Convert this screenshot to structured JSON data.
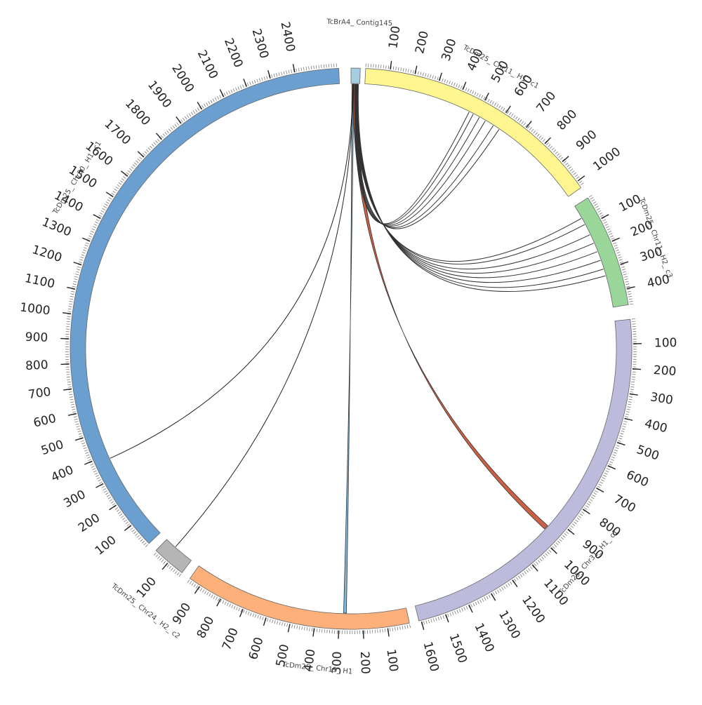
{
  "contigs": [
    {
      "id": "c145",
      "name": "TcBrA4_ Contig145",
      "color": "#a6cee3",
      "start_deg": 0,
      "end_deg": 1.9,
      "ticks": [],
      "label_deg": 1.5,
      "label_r": 465
    },
    {
      "id": "chr11h1",
      "name": "TcDm25_ Chr11_ H1_ c1",
      "color": "#fff68f",
      "start_deg": 3.0,
      "end_deg": 55.0,
      "ticks": [
        {
          "deg": 8.0,
          "label": "100"
        },
        {
          "deg": 13.1,
          "label": "200"
        },
        {
          "deg": 18.2,
          "label": "300"
        },
        {
          "deg": 23.3,
          "label": "400"
        },
        {
          "deg": 28.3,
          "label": "500"
        },
        {
          "deg": 33.3,
          "label": "600"
        },
        {
          "deg": 38.4,
          "label": "700"
        },
        {
          "deg": 43.4,
          "label": "800"
        },
        {
          "deg": 48.5,
          "label": "900"
        },
        {
          "deg": 53.5,
          "label": "1000"
        }
      ],
      "label_deg": 28,
      "label_r": 455
    },
    {
      "id": "chr11h2",
      "name": "TcDm25_ Chr11_ H2_ c3",
      "color": "#9ad69a",
      "start_deg": 57.5,
      "end_deg": 81.0,
      "ticks": [
        {
          "deg": 62.5,
          "label": "100"
        },
        {
          "deg": 67.6,
          "label": "200"
        },
        {
          "deg": 72.6,
          "label": "300"
        },
        {
          "deg": 77.7,
          "label": "400"
        }
      ],
      "label_deg": 70,
      "label_r": 462
    },
    {
      "id": "chr31",
      "name": "TcDm25_ Chr31_ H1_ c1",
      "color": "#bcbbdc",
      "start_deg": 84.0,
      "end_deg": 166.0,
      "ticks": [
        {
          "deg": 89.0,
          "label": "100"
        },
        {
          "deg": 94.1,
          "label": "200"
        },
        {
          "deg": 99.2,
          "label": "300"
        },
        {
          "deg": 104.3,
          "label": "400"
        },
        {
          "deg": 109.4,
          "label": "500"
        },
        {
          "deg": 114.5,
          "label": "600"
        },
        {
          "deg": 119.6,
          "label": "700"
        },
        {
          "deg": 124.7,
          "label": "800"
        },
        {
          "deg": 129.8,
          "label": "900"
        },
        {
          "deg": 134.9,
          "label": "1000"
        },
        {
          "deg": 140.0,
          "label": "1100"
        },
        {
          "deg": 145.1,
          "label": "1200"
        },
        {
          "deg": 150.2,
          "label": "1300"
        },
        {
          "deg": 155.3,
          "label": "1400"
        },
        {
          "deg": 160.4,
          "label": "1500"
        },
        {
          "deg": 165.5,
          "label": "1600"
        }
      ],
      "label_deg": 132,
      "label_r": 455
    },
    {
      "id": "chr19",
      "name": "TcDm25_ Chr19_ H1",
      "color": "#fdb07a",
      "start_deg": 168.0,
      "end_deg": 215.0,
      "ticks": [
        {
          "deg": 172.5,
          "label": "100"
        },
        {
          "deg": 177.5,
          "label": "200"
        },
        {
          "deg": 182.5,
          "label": "300"
        },
        {
          "deg": 187.5,
          "label": "400"
        },
        {
          "deg": 192.5,
          "label": "500"
        },
        {
          "deg": 197.5,
          "label": "600"
        },
        {
          "deg": 202.5,
          "label": "700"
        },
        {
          "deg": 207.5,
          "label": "800"
        },
        {
          "deg": 212.5,
          "label": "900"
        }
      ],
      "label_deg": 186,
      "label_r": 458
    },
    {
      "id": "chr24",
      "name": "TcDm25_ Chr24_ H2_ c2",
      "color": "#b5b5b5",
      "start_deg": 217.0,
      "end_deg": 224.0,
      "ticks": [
        {
          "deg": 220.5,
          "label": "100"
        }
      ],
      "label_deg": 218,
      "label_r": 475
    },
    {
      "id": "chr30",
      "name": "TcDm25_ Chr30_ H1_ c1",
      "color": "#6a9fd0",
      "start_deg": 226.0,
      "end_deg": 357.5,
      "ticks": [
        {
          "deg": 231.2,
          "label": "100"
        },
        {
          "deg": 236.3,
          "label": "200"
        },
        {
          "deg": 241.4,
          "label": "300"
        },
        {
          "deg": 246.5,
          "label": "400"
        },
        {
          "deg": 251.6,
          "label": "500"
        },
        {
          "deg": 256.7,
          "label": "600"
        },
        {
          "deg": 261.8,
          "label": "700"
        },
        {
          "deg": 266.9,
          "label": "800"
        },
        {
          "deg": 272.0,
          "label": "900"
        },
        {
          "deg": 277.1,
          "label": "1000"
        },
        {
          "deg": 282.2,
          "label": "1100"
        },
        {
          "deg": 287.3,
          "label": "1200"
        },
        {
          "deg": 292.4,
          "label": "1300"
        },
        {
          "deg": 297.5,
          "label": "1400"
        },
        {
          "deg": 302.6,
          "label": "1500"
        },
        {
          "deg": 307.7,
          "label": "1600"
        },
        {
          "deg": 312.8,
          "label": "1700"
        },
        {
          "deg": 317.9,
          "label": "1800"
        },
        {
          "deg": 323.0,
          "label": "1900"
        },
        {
          "deg": 328.1,
          "label": "2000"
        },
        {
          "deg": 333.2,
          "label": "2100"
        },
        {
          "deg": 338.3,
          "label": "2200"
        },
        {
          "deg": 343.4,
          "label": "2300"
        },
        {
          "deg": 348.5,
          "label": "2400"
        }
      ],
      "label_deg": 302,
      "label_r": 460
    }
  ],
  "links": [
    {
      "from_deg": [
        0.4,
        1.5
      ],
      "to_deg": [
        132.0,
        133.0
      ],
      "color": "#c8573a",
      "width": 7,
      "filled": true
    },
    {
      "from_deg": [
        0.2,
        0.6
      ],
      "to_deg": [
        181.0,
        181.6
      ],
      "color": "#7ab4d8",
      "width": 3,
      "filled": true
    },
    {
      "from_deg": [
        0.4
      ],
      "to_deg": [
        245.5
      ],
      "color": "#222222",
      "width": 1,
      "filled": false
    },
    {
      "from_deg": [
        0.5
      ],
      "to_deg": [
        221.5
      ],
      "color": "#222222",
      "width": 1,
      "filled": false
    },
    {
      "from_deg": [
        0.8
      ],
      "to_deg": [
        26.5
      ],
      "color": "#333333",
      "width": 1,
      "filled": false
    },
    {
      "from_deg": [
        0.9
      ],
      "to_deg": [
        27.5
      ],
      "color": "#333333",
      "width": 1,
      "filled": false
    },
    {
      "from_deg": [
        1.0
      ],
      "to_deg": [
        29.0
      ],
      "color": "#333333",
      "width": 1,
      "filled": false
    },
    {
      "from_deg": [
        1.1
      ],
      "to_deg": [
        30.5
      ],
      "color": "#333333",
      "width": 1,
      "filled": false
    },
    {
      "from_deg": [
        1.2
      ],
      "to_deg": [
        32.5
      ],
      "color": "#333333",
      "width": 1,
      "filled": false
    },
    {
      "from_deg": [
        1.3
      ],
      "to_deg": [
        34.0
      ],
      "color": "#333333",
      "width": 1,
      "filled": false
    },
    {
      "from_deg": [
        0.9
      ],
      "to_deg": [
        60.5
      ],
      "color": "#333333",
      "width": 1,
      "filled": false
    },
    {
      "from_deg": [
        1.0
      ],
      "to_deg": [
        62.0
      ],
      "color": "#333333",
      "width": 1,
      "filled": false
    },
    {
      "from_deg": [
        1.1
      ],
      "to_deg": [
        64.5
      ],
      "color": "#333333",
      "width": 1,
      "filled": false
    },
    {
      "from_deg": [
        1.2
      ],
      "to_deg": [
        66.5
      ],
      "color": "#333333",
      "width": 1,
      "filled": false
    },
    {
      "from_deg": [
        1.3
      ],
      "to_deg": [
        68.5
      ],
      "color": "#333333",
      "width": 1,
      "filled": false
    },
    {
      "from_deg": [
        1.4
      ],
      "to_deg": [
        70.5
      ],
      "color": "#333333",
      "width": 1,
      "filled": false
    },
    {
      "from_deg": [
        1.5
      ],
      "to_deg": [
        72.5
      ],
      "color": "#333333",
      "width": 1,
      "filled": false
    },
    {
      "from_deg": [
        1.6
      ],
      "to_deg": [
        74.0
      ],
      "color": "#333333",
      "width": 1,
      "filled": false
    }
  ]
}
